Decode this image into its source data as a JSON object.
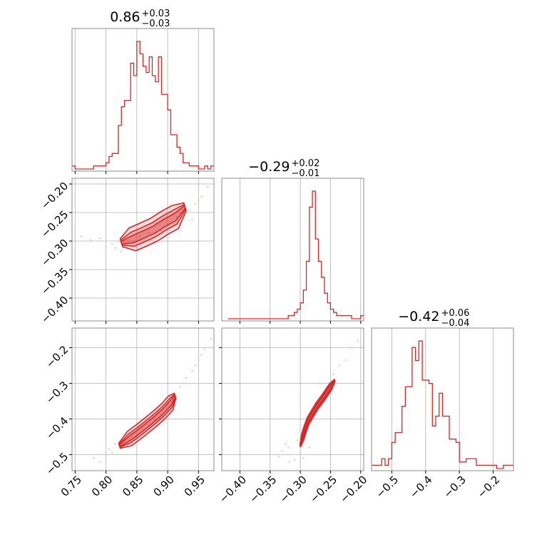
{
  "colors": {
    "line": "#d62728",
    "fill": "#f3c2c3",
    "grid": "#b0b0b0",
    "frame": "#8c8c8c"
  },
  "chart_data": [
    {
      "type": "histogram",
      "title_main": "0.86",
      "title_sup": "+0.03",
      "title_sub": "−0.03",
      "xlim": [
        0.745,
        0.975
      ],
      "grid": true,
      "bins_x": [
        0.745,
        0.75,
        0.755,
        0.76,
        0.765,
        0.77,
        0.775,
        0.78,
        0.785,
        0.79,
        0.795,
        0.8,
        0.805,
        0.81,
        0.815,
        0.82,
        0.825,
        0.83,
        0.835,
        0.84,
        0.845,
        0.85,
        0.855,
        0.86,
        0.865,
        0.87,
        0.875,
        0.88,
        0.885,
        0.89,
        0.895,
        0.9,
        0.905,
        0.91,
        0.915,
        0.92,
        0.925,
        0.93,
        0.935,
        0.94,
        0.945,
        0.95,
        0.955,
        0.96,
        0.965,
        0.97
      ],
      "counts": [
        1,
        0,
        0,
        0,
        0,
        0,
        0,
        1,
        1,
        1,
        1,
        2,
        4,
        5,
        5,
        14,
        20,
        22,
        22,
        34,
        30,
        41,
        37,
        33,
        31,
        36,
        30,
        28,
        36,
        24,
        24,
        19,
        11,
        11,
        7,
        5,
        2,
        2,
        1,
        1,
        1,
        0,
        0,
        1,
        0,
        1
      ]
    },
    {
      "type": "histogram",
      "title_main": "−0.29",
      "title_sup": "+0.02",
      "title_sub": "−0.01",
      "xlim": [
        -0.43,
        -0.195
      ],
      "grid": true,
      "bins_x": [
        -0.42,
        -0.415,
        -0.41,
        -0.405,
        -0.4,
        -0.395,
        -0.39,
        -0.385,
        -0.38,
        -0.375,
        -0.37,
        -0.365,
        -0.36,
        -0.355,
        -0.35,
        -0.345,
        -0.34,
        -0.335,
        -0.33,
        -0.325,
        -0.32,
        -0.315,
        -0.31,
        -0.305,
        -0.3,
        -0.295,
        -0.29,
        -0.285,
        -0.28,
        -0.275,
        -0.27,
        -0.265,
        -0.26,
        -0.255,
        -0.25,
        -0.245,
        -0.24,
        -0.235,
        -0.23,
        -0.225,
        -0.22,
        -0.215,
        -0.21,
        -0.205,
        -0.2
      ],
      "counts": [
        0,
        0,
        0,
        0,
        0,
        0,
        0,
        0,
        0,
        0,
        0,
        0,
        0,
        0,
        0,
        0,
        0,
        0,
        0,
        0,
        1,
        1,
        2,
        3,
        5,
        9,
        18,
        35,
        40,
        25,
        18,
        13,
        8,
        5,
        3,
        2,
        1,
        1,
        1,
        1,
        1,
        0,
        0,
        0,
        1
      ]
    },
    {
      "type": "histogram",
      "title_main": "−0.42",
      "title_sup": "+0.06",
      "title_sub": "−0.04",
      "xlim": [
        -0.56,
        -0.14
      ],
      "grid": true,
      "bins_x": [
        -0.56,
        -0.55,
        -0.54,
        -0.53,
        -0.52,
        -0.51,
        -0.5,
        -0.49,
        -0.48,
        -0.47,
        -0.46,
        -0.45,
        -0.44,
        -0.43,
        -0.42,
        -0.41,
        -0.4,
        -0.39,
        -0.38,
        -0.37,
        -0.36,
        -0.35,
        -0.34,
        -0.33,
        -0.32,
        -0.31,
        -0.3,
        -0.29,
        -0.28,
        -0.27,
        -0.26,
        -0.25,
        -0.24,
        -0.23,
        -0.22,
        -0.21,
        -0.2,
        -0.19,
        -0.18,
        -0.17,
        -0.16,
        -0.15
      ],
      "counts": [
        1,
        1,
        1,
        3,
        1,
        3,
        8,
        11,
        11,
        19,
        25,
        25,
        37,
        33,
        39,
        27,
        27,
        26,
        13,
        16,
        23,
        16,
        16,
        9,
        9,
        8,
        2,
        2,
        3,
        3,
        3,
        1,
        1,
        1,
        1,
        1,
        1,
        0,
        0,
        1,
        1,
        1
      ]
    },
    {
      "type": "scatter",
      "xlim": [
        0.745,
        0.975
      ],
      "ylim": [
        -0.44,
        -0.19
      ],
      "grid": true,
      "points": [
        [
          0.76,
          -0.292
        ],
        [
          0.775,
          -0.298
        ],
        [
          0.79,
          -0.295
        ],
        [
          0.8,
          -0.31
        ],
        [
          0.81,
          -0.305
        ],
        [
          0.815,
          -0.312
        ],
        [
          0.82,
          -0.3
        ],
        [
          0.825,
          -0.318
        ],
        [
          0.83,
          -0.305
        ],
        [
          0.835,
          -0.3
        ],
        [
          0.85,
          -0.312
        ],
        [
          0.855,
          -0.292
        ],
        [
          0.87,
          -0.285
        ],
        [
          0.88,
          -0.27
        ],
        [
          0.89,
          -0.282
        ],
        [
          0.895,
          -0.262
        ],
        [
          0.905,
          -0.255
        ],
        [
          0.915,
          -0.258
        ],
        [
          0.925,
          -0.238
        ],
        [
          0.935,
          -0.245
        ],
        [
          0.945,
          -0.235
        ],
        [
          0.95,
          -0.228
        ],
        [
          0.955,
          -0.222
        ],
        [
          0.965,
          -0.205
        ],
        [
          0.94,
          -0.262
        ],
        [
          0.92,
          -0.27
        ]
      ],
      "contour_centers": [
        [
          0.825,
          -0.303
        ],
        [
          0.843,
          -0.297
        ],
        [
          0.862,
          -0.288
        ],
        [
          0.878,
          -0.28
        ],
        [
          0.895,
          -0.268
        ],
        [
          0.912,
          -0.258
        ],
        [
          0.928,
          -0.24
        ]
      ],
      "contour_widths": [
        0.02,
        0.012,
        0.006
      ],
      "contour_fills": [
        0.45,
        0.65,
        0.95
      ]
    },
    {
      "type": "scatter",
      "xlim": [
        0.745,
        0.975
      ],
      "ylim": [
        -0.545,
        -0.145
      ],
      "grid": true,
      "points": [
        [
          0.78,
          -0.51
        ],
        [
          0.79,
          -0.52
        ],
        [
          0.8,
          -0.5
        ],
        [
          0.805,
          -0.485
        ],
        [
          0.81,
          -0.495
        ],
        [
          0.815,
          -0.47
        ],
        [
          0.92,
          -0.31
        ],
        [
          0.925,
          -0.3
        ],
        [
          0.93,
          -0.285
        ],
        [
          0.94,
          -0.265
        ],
        [
          0.945,
          -0.25
        ],
        [
          0.95,
          -0.235
        ],
        [
          0.955,
          -0.22
        ],
        [
          0.96,
          -0.205
        ],
        [
          0.97,
          -0.175
        ]
      ],
      "contour_centers": [
        [
          0.822,
          -0.475
        ],
        [
          0.838,
          -0.455
        ],
        [
          0.852,
          -0.437
        ],
        [
          0.866,
          -0.418
        ],
        [
          0.88,
          -0.398
        ],
        [
          0.893,
          -0.378
        ],
        [
          0.905,
          -0.355
        ],
        [
          0.912,
          -0.335
        ]
      ],
      "contour_widths": [
        0.02,
        0.012,
        0.006
      ],
      "contour_fills": [
        0.45,
        0.65,
        0.95
      ]
    },
    {
      "type": "scatter",
      "xlim": [
        -0.43,
        -0.195
      ],
      "ylim": [
        -0.545,
        -0.145
      ],
      "grid": true,
      "points": [
        [
          -0.335,
          -0.505
        ],
        [
          -0.33,
          -0.49
        ],
        [
          -0.325,
          -0.47
        ],
        [
          -0.32,
          -0.48
        ],
        [
          -0.318,
          -0.52
        ],
        [
          -0.31,
          -0.515
        ],
        [
          -0.305,
          -0.46
        ],
        [
          -0.3,
          -0.495
        ],
        [
          -0.295,
          -0.51
        ],
        [
          -0.285,
          -0.48
        ],
        [
          -0.27,
          -0.3
        ],
        [
          -0.262,
          -0.33
        ],
        [
          -0.255,
          -0.31
        ],
        [
          -0.245,
          -0.275
        ],
        [
          -0.235,
          -0.25
        ],
        [
          -0.225,
          -0.235
        ],
        [
          -0.215,
          -0.2
        ],
        [
          -0.205,
          -0.18
        ]
      ],
      "contour_centers": [
        [
          -0.3,
          -0.475
        ],
        [
          -0.296,
          -0.45
        ],
        [
          -0.292,
          -0.428
        ],
        [
          -0.287,
          -0.405
        ],
        [
          -0.28,
          -0.385
        ],
        [
          -0.273,
          -0.365
        ],
        [
          -0.262,
          -0.34
        ],
        [
          -0.25,
          -0.31
        ],
        [
          -0.243,
          -0.292
        ]
      ],
      "contour_widths": [
        0.009,
        0.005,
        0.0028
      ],
      "contour_fills": [
        0.45,
        0.65,
        0.95
      ]
    }
  ],
  "axes": {
    "x1_ticks": [
      "0.75",
      "0.80",
      "0.85",
      "0.90",
      "0.95"
    ],
    "x1_values": [
      0.75,
      0.8,
      0.85,
      0.9,
      0.95
    ],
    "x2_ticks": [
      "−0.40",
      "−0.35",
      "−0.30",
      "−0.25",
      "−0.20"
    ],
    "x2_values": [
      -0.4,
      -0.35,
      -0.3,
      -0.25,
      -0.2
    ],
    "x3_ticks": [
      "−0.5",
      "−0.4",
      "−0.3",
      "−0.2"
    ],
    "x3_values": [
      -0.5,
      -0.4,
      -0.3,
      -0.2
    ],
    "y2_ticks": [
      "−0.20",
      "−0.25",
      "−0.30",
      "−0.35",
      "−0.40"
    ],
    "y2_values": [
      -0.2,
      -0.25,
      -0.3,
      -0.35,
      -0.4
    ],
    "y3_ticks": [
      "−0.2",
      "−0.3",
      "−0.4",
      "−0.5"
    ],
    "y3_values": [
      -0.2,
      -0.3,
      -0.4,
      -0.5
    ]
  }
}
